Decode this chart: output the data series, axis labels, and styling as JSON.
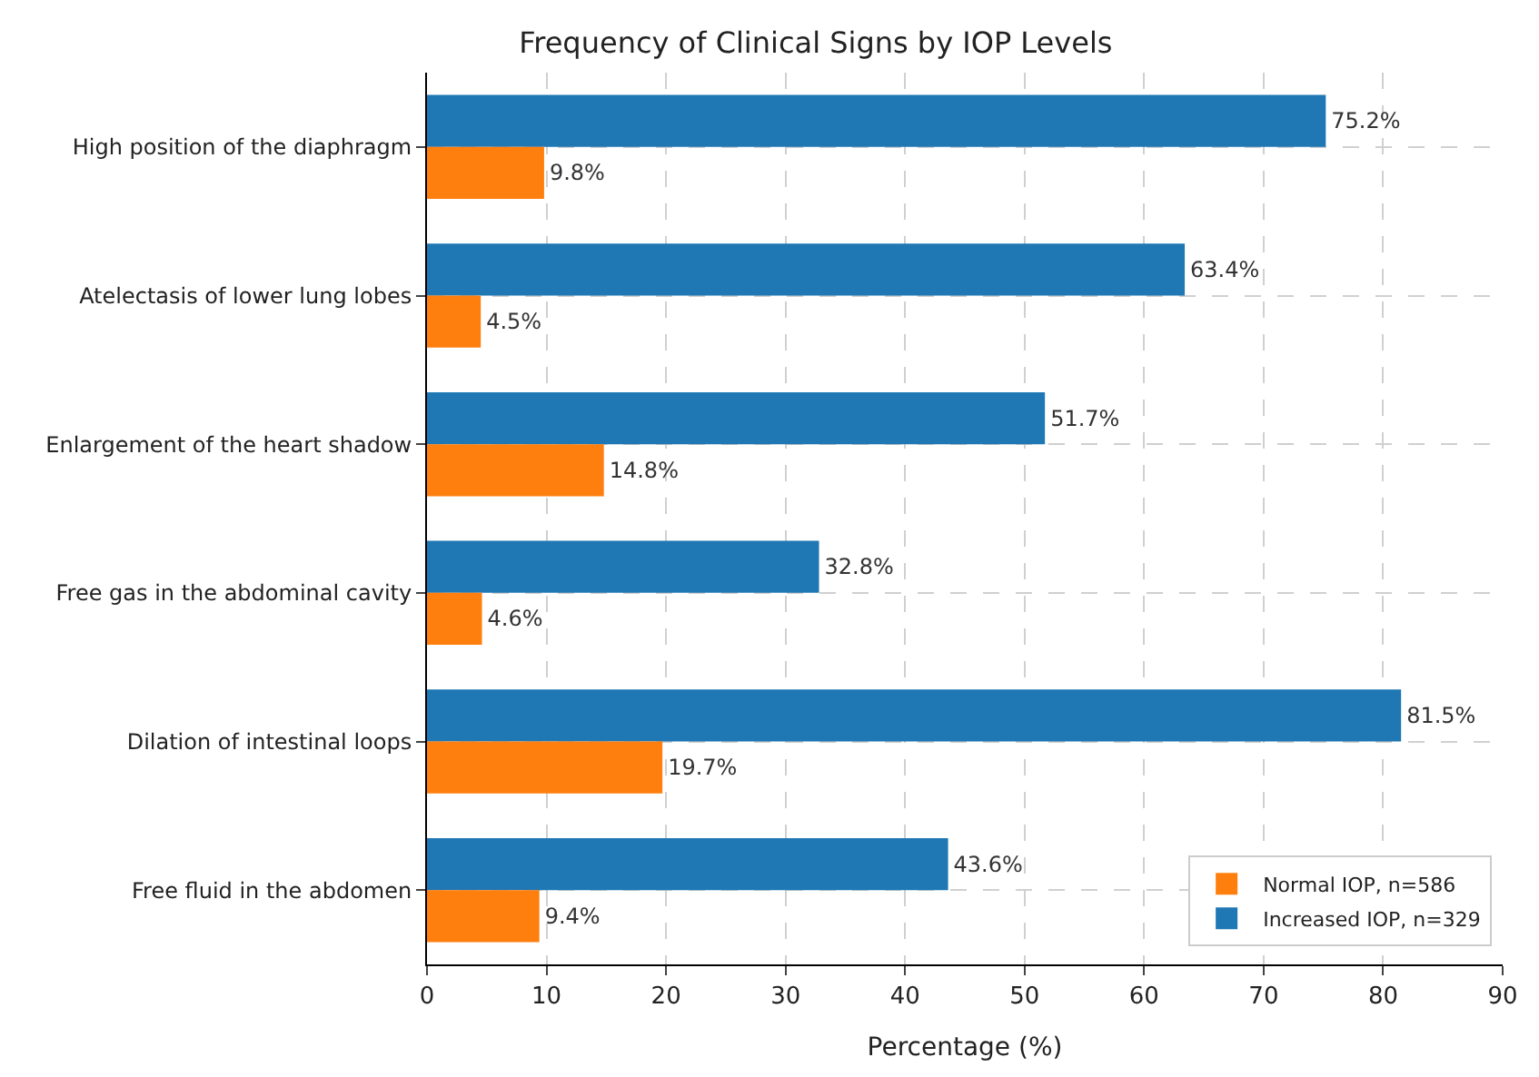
{
  "chart_data": {
    "type": "bar",
    "orientation": "horizontal",
    "title": "Frequency of Clinical Signs by IOP Levels",
    "xlabel": "Percentage (%)",
    "categories": [
      "High position of the diaphragm",
      "Atelectasis of lower lung lobes",
      "Enlargement of the heart shadow",
      "Free gas in the abdominal cavity",
      "Dilation of intestinal loops",
      "Free fluid in the abdomen"
    ],
    "series": [
      {
        "name": "Normal IOP, n=586",
        "color": "#ff7f0e",
        "values": [
          9.8,
          4.5,
          14.8,
          4.6,
          19.7,
          9.4
        ],
        "value_labels": [
          "9.8%",
          "4.5%",
          "14.8%",
          "4.6%",
          "19.7%",
          "9.4%"
        ]
      },
      {
        "name": "Increased IOP, n=329",
        "color": "#1f77b4",
        "values": [
          75.2,
          63.4,
          51.7,
          32.8,
          81.5,
          43.6
        ],
        "value_labels": [
          "75.2%",
          "63.4%",
          "51.7%",
          "32.8%",
          "81.5%",
          "43.6%"
        ]
      }
    ],
    "xlim": [
      0,
      90
    ],
    "xticks": [
      0,
      10,
      20,
      30,
      40,
      50,
      60,
      70,
      80,
      90
    ],
    "grid": true,
    "legend": "bottom right"
  }
}
